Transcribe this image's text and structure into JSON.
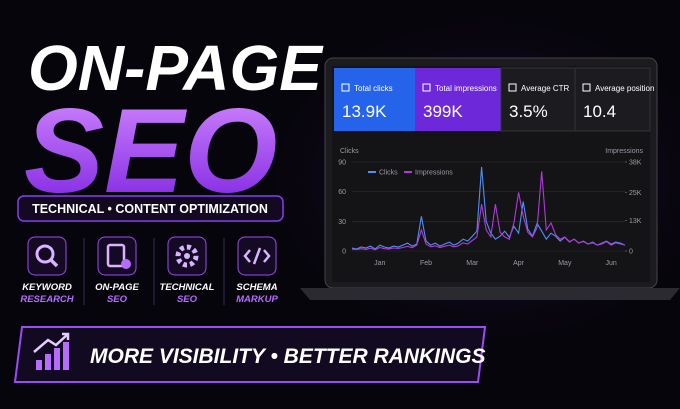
{
  "header": {
    "title_line1": "ON-PAGE",
    "title_line2": "SEO",
    "tagline": "TECHNICAL • CONTENT OPTIMIZATION"
  },
  "services": [
    {
      "line1": "KEYWORD",
      "line2": "RESEARCH"
    },
    {
      "line1": "ON-PAGE",
      "line2": "SEO"
    },
    {
      "line1": "TECHNICAL",
      "line2": "SEO"
    },
    {
      "line1": "SCHEMA",
      "line2": "MARKUP"
    }
  ],
  "banner": "MORE VISIBILITY • BETTER RANKINGS",
  "dashboard": {
    "cards": [
      {
        "label": "Total clicks",
        "value": "13.9K"
      },
      {
        "label": "Total impressions",
        "value": "399K"
      },
      {
        "label": "Average CTR",
        "value": "3.5%"
      },
      {
        "label": "Average position",
        "value": "10.4"
      }
    ]
  },
  "chart_data": {
    "type": "line",
    "y_label": "Clicks",
    "y2_label": "Impressions",
    "categories": [
      null,
      null,
      null,
      null,
      null,
      null,
      "Jan",
      null,
      null,
      null,
      null,
      null,
      null,
      null,
      null,
      null,
      "Feb",
      null,
      null,
      null,
      null,
      null,
      null,
      null,
      null,
      null,
      "Mar",
      null,
      null,
      null,
      null,
      null,
      null,
      null,
      null,
      null,
      "Apr",
      null,
      null,
      null,
      null,
      null,
      null,
      null,
      null,
      null,
      "May",
      null,
      null,
      null,
      null,
      null,
      null,
      null,
      null,
      null,
      "Jun",
      null,
      null,
      null
    ],
    "series": [
      {
        "name": "Clicks",
        "color": "#4f8ef7",
        "values": [
          3,
          2,
          4,
          3,
          5,
          2,
          6,
          4,
          3,
          5,
          4,
          6,
          8,
          5,
          7,
          35,
          10,
          6,
          8,
          5,
          7,
          9,
          6,
          8,
          12,
          10,
          15,
          20,
          85,
          30,
          18,
          12,
          15,
          20,
          14,
          25,
          18,
          50,
          22,
          15,
          28,
          20,
          12,
          18,
          15,
          10,
          14,
          9,
          12,
          8,
          10,
          7,
          9,
          6,
          8,
          10,
          7,
          9,
          8,
          6
        ]
      },
      {
        "name": "Impressions",
        "color": "#b03ad8",
        "axis": "y2",
        "values": [
          800,
          600,
          1000,
          700,
          1200,
          500,
          1500,
          1000,
          800,
          1300,
          1100,
          1500,
          2000,
          1400,
          2500,
          9000,
          3000,
          1800,
          2200,
          1500,
          2000,
          2500,
          1800,
          2200,
          3500,
          3000,
          4500,
          6000,
          20000,
          9000,
          6000,
          20000,
          8000,
          6000,
          5000,
          12000,
          25000,
          15000,
          8000,
          6000,
          10000,
          34000,
          9000,
          12000,
          7000,
          5000,
          6000,
          4000,
          5000,
          3500,
          4000,
          3000,
          3500,
          2500,
          3000,
          4000,
          2500,
          3500,
          3000,
          2500
        ]
      }
    ],
    "ylim": [
      0,
      90
    ],
    "yticks": [
      0,
      30,
      60,
      90
    ],
    "y2lim": [
      0,
      38000
    ],
    "y2ticks": [
      0,
      {
        "value": 13000,
        "label": "13K"
      },
      {
        "value": 25000,
        "label": "25K"
      },
      {
        "value": 38000,
        "label": "38K"
      }
    ],
    "grid": true
  }
}
